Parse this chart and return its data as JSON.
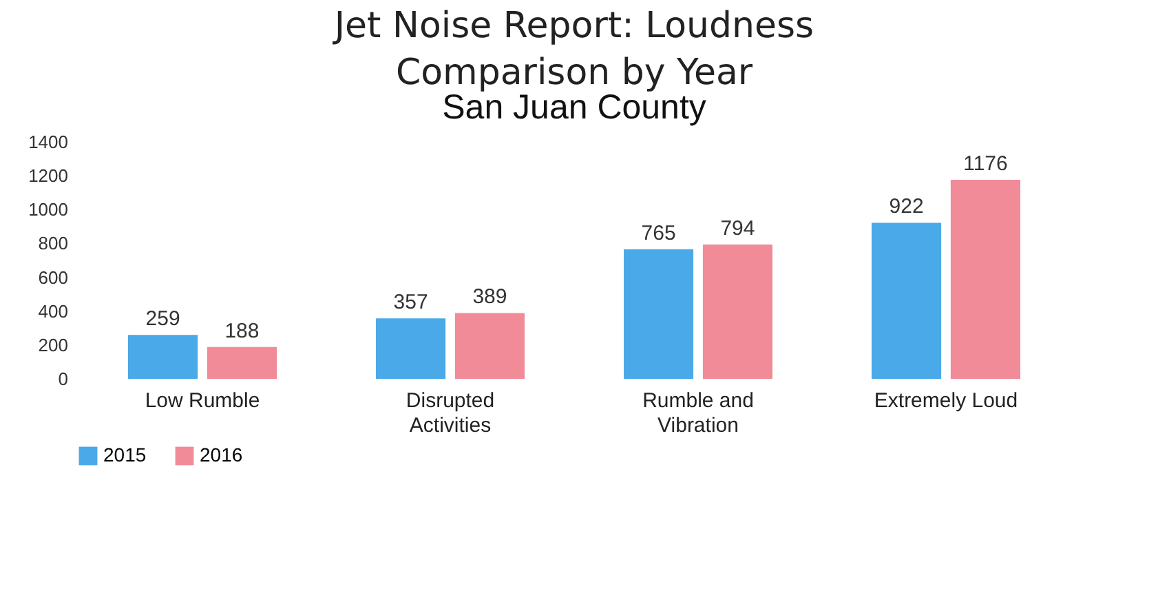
{
  "chart_data": {
    "type": "bar",
    "title": "Jet Noise Report: Loudness Comparison by Year",
    "subtitle": "San Juan County",
    "categories": [
      "Low Rumble",
      "Disrupted Activities",
      "Rumble and Vibration",
      "Extremely Loud"
    ],
    "series": [
      {
        "name": "2015",
        "color": "#4aa9e9",
        "values": [
          259,
          357,
          765,
          922
        ]
      },
      {
        "name": "2016",
        "color": "#f08b97",
        "values": [
          188,
          389,
          794,
          1176
        ]
      }
    ],
    "ylim": [
      0,
      1400
    ],
    "yticks": [
      0,
      200,
      400,
      600,
      800,
      1000,
      1200,
      1400
    ],
    "grid": false,
    "legend": "bottom",
    "data_labels": true
  }
}
